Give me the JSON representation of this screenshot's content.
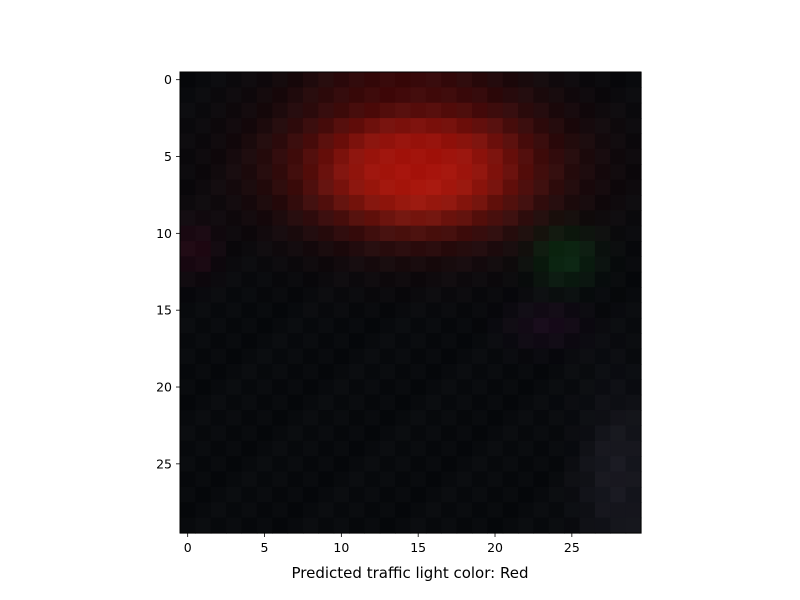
{
  "figure": {
    "caption_prefix": "Predicted traffic light color:",
    "prediction": "Red",
    "prediction_color": "#ff2a1a"
  },
  "image_grid": {
    "rows": 30,
    "cols": 30,
    "background": "#080a0d",
    "blobs": [
      {
        "name": "red-light-glow",
        "cx": 15.0,
        "cy": 6.0,
        "rx": 5.2,
        "ry": 3.0,
        "color": [
          255,
          70,
          30
        ],
        "strength": 1.0
      },
      {
        "name": "red-light-halo",
        "cx": 15.0,
        "cy": 5.5,
        "rx": 8.5,
        "ry": 4.6,
        "color": [
          150,
          10,
          8
        ],
        "strength": 0.85
      },
      {
        "name": "green-tint",
        "cx": 24.5,
        "cy": 11.5,
        "rx": 2.2,
        "ry": 2.0,
        "color": [
          10,
          60,
          20
        ],
        "strength": 0.6
      },
      {
        "name": "purple-tint",
        "cx": 23.5,
        "cy": 16.0,
        "rx": 2.5,
        "ry": 1.5,
        "color": [
          40,
          12,
          40
        ],
        "strength": 0.5
      },
      {
        "name": "bottom-right-gray",
        "cx": 28.0,
        "cy": 26.0,
        "rx": 2.5,
        "ry": 6.0,
        "color": [
          40,
          38,
          50
        ],
        "strength": 0.55
      },
      {
        "name": "top-dark-red",
        "cx": 14.0,
        "cy": 0.5,
        "rx": 6.0,
        "ry": 1.5,
        "color": [
          70,
          8,
          8
        ],
        "strength": 0.7
      },
      {
        "name": "left-magenta",
        "cx": 0.5,
        "cy": 11.0,
        "rx": 1.6,
        "ry": 2.0,
        "color": [
          50,
          8,
          25
        ],
        "strength": 0.6
      }
    ]
  },
  "axes": {
    "x_ticks": [
      "0",
      "5",
      "10",
      "15",
      "20",
      "25"
    ],
    "x_tick_values": [
      0,
      5,
      10,
      15,
      20,
      25
    ],
    "y_ticks": [
      "0",
      "5",
      "10",
      "15",
      "20",
      "25"
    ],
    "y_tick_values": [
      0,
      5,
      10,
      15,
      20,
      25
    ]
  }
}
